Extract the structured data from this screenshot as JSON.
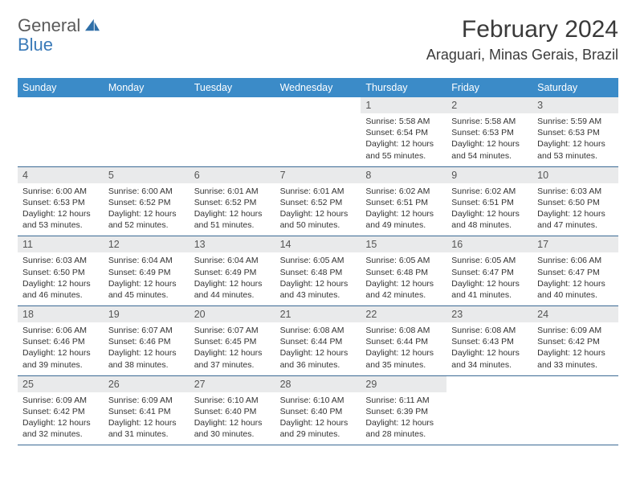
{
  "brand": {
    "general": "General",
    "blue": "Blue"
  },
  "title": "February 2024",
  "location": "Araguari, Minas Gerais, Brazil",
  "colors": {
    "header_bg": "#3b8bc8",
    "daynum_bg": "#e9eaeb",
    "row_border": "#3b6a94",
    "brand_blue": "#3a7ab8",
    "text": "#333333"
  },
  "weekdays": [
    "Sunday",
    "Monday",
    "Tuesday",
    "Wednesday",
    "Thursday",
    "Friday",
    "Saturday"
  ],
  "weeks": [
    [
      {
        "n": "",
        "rise": "",
        "set": "",
        "day": ""
      },
      {
        "n": "",
        "rise": "",
        "set": "",
        "day": ""
      },
      {
        "n": "",
        "rise": "",
        "set": "",
        "day": ""
      },
      {
        "n": "",
        "rise": "",
        "set": "",
        "day": ""
      },
      {
        "n": "1",
        "rise": "Sunrise: 5:58 AM",
        "set": "Sunset: 6:54 PM",
        "day": "Daylight: 12 hours and 55 minutes."
      },
      {
        "n": "2",
        "rise": "Sunrise: 5:58 AM",
        "set": "Sunset: 6:53 PM",
        "day": "Daylight: 12 hours and 54 minutes."
      },
      {
        "n": "3",
        "rise": "Sunrise: 5:59 AM",
        "set": "Sunset: 6:53 PM",
        "day": "Daylight: 12 hours and 53 minutes."
      }
    ],
    [
      {
        "n": "4",
        "rise": "Sunrise: 6:00 AM",
        "set": "Sunset: 6:53 PM",
        "day": "Daylight: 12 hours and 53 minutes."
      },
      {
        "n": "5",
        "rise": "Sunrise: 6:00 AM",
        "set": "Sunset: 6:52 PM",
        "day": "Daylight: 12 hours and 52 minutes."
      },
      {
        "n": "6",
        "rise": "Sunrise: 6:01 AM",
        "set": "Sunset: 6:52 PM",
        "day": "Daylight: 12 hours and 51 minutes."
      },
      {
        "n": "7",
        "rise": "Sunrise: 6:01 AM",
        "set": "Sunset: 6:52 PM",
        "day": "Daylight: 12 hours and 50 minutes."
      },
      {
        "n": "8",
        "rise": "Sunrise: 6:02 AM",
        "set": "Sunset: 6:51 PM",
        "day": "Daylight: 12 hours and 49 minutes."
      },
      {
        "n": "9",
        "rise": "Sunrise: 6:02 AM",
        "set": "Sunset: 6:51 PM",
        "day": "Daylight: 12 hours and 48 minutes."
      },
      {
        "n": "10",
        "rise": "Sunrise: 6:03 AM",
        "set": "Sunset: 6:50 PM",
        "day": "Daylight: 12 hours and 47 minutes."
      }
    ],
    [
      {
        "n": "11",
        "rise": "Sunrise: 6:03 AM",
        "set": "Sunset: 6:50 PM",
        "day": "Daylight: 12 hours and 46 minutes."
      },
      {
        "n": "12",
        "rise": "Sunrise: 6:04 AM",
        "set": "Sunset: 6:49 PM",
        "day": "Daylight: 12 hours and 45 minutes."
      },
      {
        "n": "13",
        "rise": "Sunrise: 6:04 AM",
        "set": "Sunset: 6:49 PM",
        "day": "Daylight: 12 hours and 44 minutes."
      },
      {
        "n": "14",
        "rise": "Sunrise: 6:05 AM",
        "set": "Sunset: 6:48 PM",
        "day": "Daylight: 12 hours and 43 minutes."
      },
      {
        "n": "15",
        "rise": "Sunrise: 6:05 AM",
        "set": "Sunset: 6:48 PM",
        "day": "Daylight: 12 hours and 42 minutes."
      },
      {
        "n": "16",
        "rise": "Sunrise: 6:05 AM",
        "set": "Sunset: 6:47 PM",
        "day": "Daylight: 12 hours and 41 minutes."
      },
      {
        "n": "17",
        "rise": "Sunrise: 6:06 AM",
        "set": "Sunset: 6:47 PM",
        "day": "Daylight: 12 hours and 40 minutes."
      }
    ],
    [
      {
        "n": "18",
        "rise": "Sunrise: 6:06 AM",
        "set": "Sunset: 6:46 PM",
        "day": "Daylight: 12 hours and 39 minutes."
      },
      {
        "n": "19",
        "rise": "Sunrise: 6:07 AM",
        "set": "Sunset: 6:46 PM",
        "day": "Daylight: 12 hours and 38 minutes."
      },
      {
        "n": "20",
        "rise": "Sunrise: 6:07 AM",
        "set": "Sunset: 6:45 PM",
        "day": "Daylight: 12 hours and 37 minutes."
      },
      {
        "n": "21",
        "rise": "Sunrise: 6:08 AM",
        "set": "Sunset: 6:44 PM",
        "day": "Daylight: 12 hours and 36 minutes."
      },
      {
        "n": "22",
        "rise": "Sunrise: 6:08 AM",
        "set": "Sunset: 6:44 PM",
        "day": "Daylight: 12 hours and 35 minutes."
      },
      {
        "n": "23",
        "rise": "Sunrise: 6:08 AM",
        "set": "Sunset: 6:43 PM",
        "day": "Daylight: 12 hours and 34 minutes."
      },
      {
        "n": "24",
        "rise": "Sunrise: 6:09 AM",
        "set": "Sunset: 6:42 PM",
        "day": "Daylight: 12 hours and 33 minutes."
      }
    ],
    [
      {
        "n": "25",
        "rise": "Sunrise: 6:09 AM",
        "set": "Sunset: 6:42 PM",
        "day": "Daylight: 12 hours and 32 minutes."
      },
      {
        "n": "26",
        "rise": "Sunrise: 6:09 AM",
        "set": "Sunset: 6:41 PM",
        "day": "Daylight: 12 hours and 31 minutes."
      },
      {
        "n": "27",
        "rise": "Sunrise: 6:10 AM",
        "set": "Sunset: 6:40 PM",
        "day": "Daylight: 12 hours and 30 minutes."
      },
      {
        "n": "28",
        "rise": "Sunrise: 6:10 AM",
        "set": "Sunset: 6:40 PM",
        "day": "Daylight: 12 hours and 29 minutes."
      },
      {
        "n": "29",
        "rise": "Sunrise: 6:11 AM",
        "set": "Sunset: 6:39 PM",
        "day": "Daylight: 12 hours and 28 minutes."
      },
      {
        "n": "",
        "rise": "",
        "set": "",
        "day": ""
      },
      {
        "n": "",
        "rise": "",
        "set": "",
        "day": ""
      }
    ]
  ]
}
